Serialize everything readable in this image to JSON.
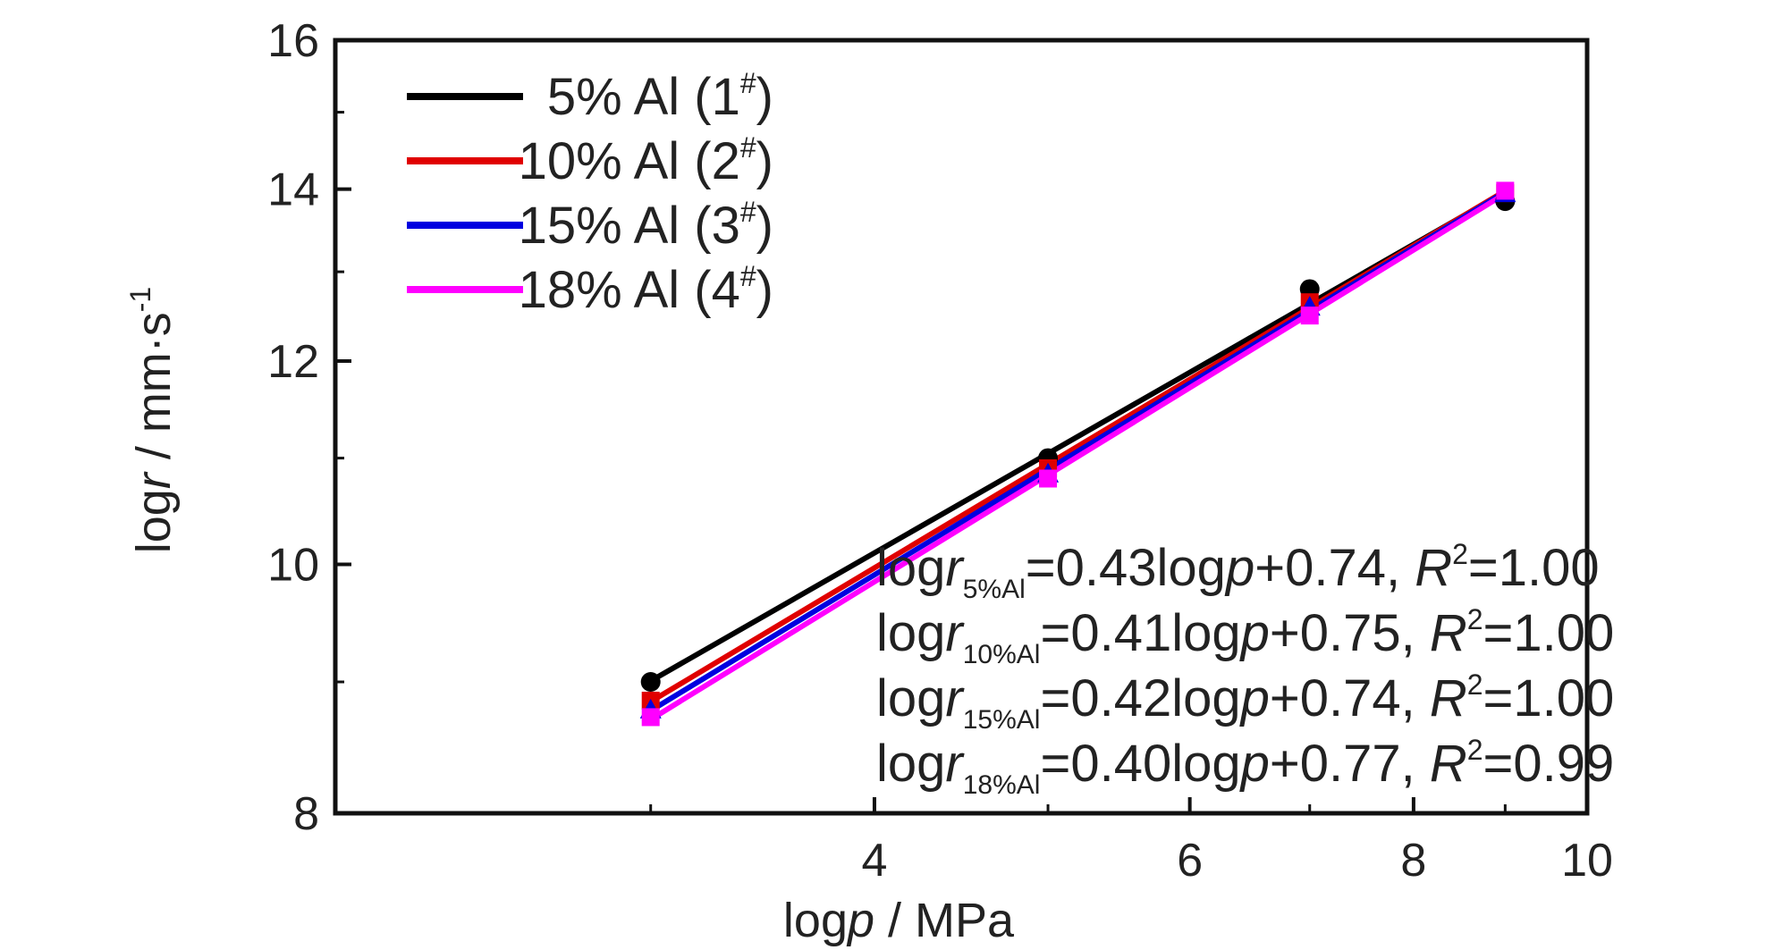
{
  "chart_data": {
    "type": "scatter",
    "xscale": "log",
    "yscale": "log",
    "xlabel": {
      "pre": "log",
      "var": "p",
      "post": " / MPa"
    },
    "ylabel": {
      "pre": "log",
      "var": "r",
      "post": " / mm·s",
      "sup": "-1"
    },
    "xlim": [
      2,
      10
    ],
    "ylim": [
      8,
      16
    ],
    "xticks": [
      4,
      6,
      8,
      10
    ],
    "yticks": [
      8,
      10,
      12,
      14,
      16
    ],
    "xtick_labels": [
      "4",
      "6",
      "8",
      "10"
    ],
    "ytick_labels": [
      "8",
      "10",
      "12",
      "14",
      "16"
    ],
    "legend_position": "top-left",
    "grid": false,
    "series": [
      {
        "name": {
          "text": "5% Al (1",
          "sup": "#",
          "close": ")"
        },
        "color": "#000000",
        "marker": "circle",
        "x": [
          3,
          5,
          7,
          9
        ],
        "y": [
          9.0,
          11.0,
          12.8,
          13.85
        ],
        "fit": {
          "slope": 0.43,
          "intercept": 0.74
        }
      },
      {
        "name": {
          "text": "10% Al (2",
          "sup": "#",
          "close": ")"
        },
        "color": "#e00000",
        "marker": "square",
        "x": [
          3,
          5,
          7,
          9
        ],
        "y": [
          8.85,
          10.9,
          12.65,
          13.95
        ],
        "fit": {
          "slope": 0.41,
          "intercept": 0.75
        }
      },
      {
        "name": {
          "text": "15% Al (3",
          "sup": "#",
          "close": ")"
        },
        "color": "#0000e0",
        "marker": "triangle",
        "x": [
          3,
          5,
          7,
          9
        ],
        "y": [
          8.78,
          10.85,
          12.6,
          13.95
        ],
        "fit": {
          "slope": 0.42,
          "intercept": 0.74
        }
      },
      {
        "name": {
          "text": "18% Al (4",
          "sup": "#",
          "close": ")"
        },
        "color": "#ff00ff",
        "marker": "square",
        "x": [
          3,
          5,
          7,
          9
        ],
        "y": [
          8.72,
          10.8,
          12.5,
          13.98
        ],
        "fit": {
          "slope": 0.4,
          "intercept": 0.77
        }
      }
    ],
    "annotations": [
      {
        "pre": "log",
        "var": "r",
        "sub": "5%Al",
        "eq": "=0.43log",
        "var2": "p",
        "tail": "+0.74, ",
        "r": "R",
        "rsup": "2",
        "rval": "=1.00"
      },
      {
        "pre": "log",
        "var": "r",
        "sub": "10%Al",
        "eq": "=0.41log",
        "var2": "p",
        "tail": "+0.75, ",
        "r": "R",
        "rsup": "2",
        "rval": "=1.00"
      },
      {
        "pre": "log",
        "var": "r",
        "sub": "15%Al",
        "eq": "=0.42log",
        "var2": "p",
        "tail": "+0.74, ",
        "r": "R",
        "rsup": "2",
        "rval": "=1.00"
      },
      {
        "pre": "log",
        "var": "r",
        "sub": "18%Al",
        "eq": "=0.40log",
        "var2": "p",
        "tail": "+0.77, ",
        "r": "R",
        "rsup": "2",
        "rval": "=0.99"
      }
    ]
  }
}
